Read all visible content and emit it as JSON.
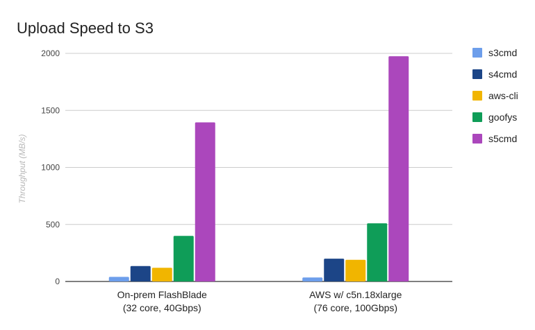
{
  "chart_data": {
    "type": "bar",
    "title": "Upload Speed to S3",
    "xlabel": "",
    "ylabel": "Throughput (MB/s)",
    "ylim": [
      0,
      2000
    ],
    "yticks": [
      0,
      500,
      1000,
      1500,
      2000
    ],
    "grid": true,
    "legend_position": "right",
    "categories": [
      [
        "On-prem FlashBlade",
        "(32 core, 40Gbps)"
      ],
      [
        "AWS w/ c5n.18xlarge",
        "(76 core, 100Gbps)"
      ]
    ],
    "series": [
      {
        "name": "s3cmd",
        "color": "#6d9eeb",
        "values": [
          40,
          35
        ]
      },
      {
        "name": "s4cmd",
        "color": "#1c4587",
        "values": [
          135,
          200
        ]
      },
      {
        "name": "aws-cli",
        "color": "#f1b500",
        "values": [
          120,
          190
        ]
      },
      {
        "name": "goofys",
        "color": "#0f9d58",
        "values": [
          400,
          510
        ]
      },
      {
        "name": "s5cmd",
        "color": "#ab47bc",
        "values": [
          1395,
          1975
        ]
      }
    ]
  }
}
